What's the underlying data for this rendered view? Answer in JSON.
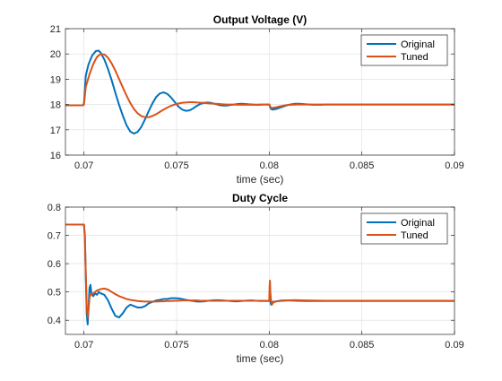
{
  "colors": {
    "original": "#0072BD",
    "tuned": "#D95319",
    "grid": "#dedede",
    "axis": "#262626",
    "legend_border": "#262626"
  },
  "chart_data": [
    {
      "type": "line",
      "title": "Output Voltage (V)",
      "xlabel": "time (sec)",
      "ylabel": "",
      "xlim": [
        0.069,
        0.09
      ],
      "ylim": [
        16,
        21
      ],
      "xticks": [
        0.07,
        0.075,
        0.08,
        0.085,
        0.09
      ],
      "xtick_labels": [
        "0.07",
        "0.075",
        "0.08",
        "0.085",
        "0.09"
      ],
      "yticks": [
        16,
        17,
        18,
        19,
        20,
        21
      ],
      "ytick_labels": [
        "16",
        "17",
        "18",
        "19",
        "20",
        "21"
      ],
      "grid": true,
      "legend": "top-right",
      "series": [
        {
          "name": "Original",
          "color": "#0072BD",
          "x": [
            0.069,
            0.06995,
            0.07,
            0.0701,
            0.07025,
            0.07045,
            0.07065,
            0.0708,
            0.0709,
            0.0711,
            0.0713,
            0.0715,
            0.0717,
            0.0719,
            0.0721,
            0.0723,
            0.0725,
            0.0727,
            0.0729,
            0.0731,
            0.0733,
            0.0735,
            0.0737,
            0.0739,
            0.0741,
            0.0743,
            0.0745,
            0.0747,
            0.0749,
            0.0751,
            0.0753,
            0.0755,
            0.0757,
            0.0759,
            0.0761,
            0.0763,
            0.0765,
            0.0767,
            0.0769,
            0.0771,
            0.0773,
            0.0775,
            0.0777,
            0.0779,
            0.0781,
            0.0783,
            0.0785,
            0.0787,
            0.0789,
            0.0791,
            0.0793,
            0.0795,
            0.0797,
            0.0799,
            0.08,
            0.08005,
            0.0801,
            0.0802,
            0.0804,
            0.0806,
            0.0808,
            0.081,
            0.0812,
            0.0814,
            0.0816,
            0.0818,
            0.082,
            0.0822,
            0.0824,
            0.0826,
            0.0828,
            0.083,
            0.0835,
            0.084,
            0.085,
            0.086,
            0.087,
            0.088,
            0.089,
            0.09
          ],
          "y": [
            17.97,
            17.97,
            18.05,
            19.15,
            19.6,
            19.95,
            20.12,
            20.13,
            20.05,
            19.78,
            19.4,
            18.95,
            18.45,
            17.98,
            17.55,
            17.18,
            16.93,
            16.85,
            16.92,
            17.12,
            17.42,
            17.75,
            18.05,
            18.3,
            18.44,
            18.48,
            18.42,
            18.28,
            18.1,
            17.92,
            17.8,
            17.75,
            17.77,
            17.85,
            17.95,
            18.03,
            18.07,
            18.08,
            18.06,
            18.02,
            17.98,
            17.96,
            17.96,
            17.98,
            18.0,
            18.02,
            18.03,
            18.02,
            18.01,
            18.0,
            17.99,
            17.99,
            18.0,
            18.0,
            18.0,
            17.9,
            17.82,
            17.8,
            17.83,
            17.88,
            17.93,
            17.98,
            18.01,
            18.03,
            18.03,
            18.02,
            18.01,
            18.0,
            17.99,
            17.99,
            17.99,
            18.0,
            18.0,
            18.0,
            18.0,
            18.0,
            18.0,
            18.0,
            18.0,
            18.0
          ]
        },
        {
          "name": "Tuned",
          "color": "#D95319",
          "x": [
            0.069,
            0.06995,
            0.07,
            0.0701,
            0.0703,
            0.0705,
            0.0707,
            0.0709,
            0.0711,
            0.0713,
            0.0715,
            0.0717,
            0.0719,
            0.0721,
            0.0723,
            0.0725,
            0.0727,
            0.0729,
            0.0731,
            0.0733,
            0.0735,
            0.0737,
            0.0739,
            0.0741,
            0.0743,
            0.0745,
            0.0747,
            0.0749,
            0.0751,
            0.0753,
            0.0755,
            0.0757,
            0.0759,
            0.0761,
            0.0763,
            0.0765,
            0.0767,
            0.0769,
            0.0771,
            0.0773,
            0.0775,
            0.0777,
            0.0779,
            0.0781,
            0.0783,
            0.0785,
            0.0787,
            0.0789,
            0.0791,
            0.0793,
            0.0795,
            0.0797,
            0.0799,
            0.08,
            0.08005,
            0.0801,
            0.0802,
            0.0804,
            0.0806,
            0.0808,
            0.081,
            0.0812,
            0.0815,
            0.082,
            0.083,
            0.084,
            0.085,
            0.086,
            0.087,
            0.088,
            0.089,
            0.09
          ],
          "y": [
            17.97,
            17.97,
            18.0,
            18.7,
            19.2,
            19.6,
            19.88,
            20.0,
            19.98,
            19.85,
            19.62,
            19.33,
            19.0,
            18.67,
            18.35,
            18.06,
            17.82,
            17.65,
            17.54,
            17.5,
            17.5,
            17.55,
            17.62,
            17.71,
            17.8,
            17.88,
            17.95,
            18.0,
            18.04,
            18.07,
            18.08,
            18.09,
            18.09,
            18.08,
            18.07,
            18.06,
            18.05,
            18.04,
            18.03,
            18.02,
            18.01,
            18.0,
            18.0,
            18.0,
            17.99,
            17.99,
            17.99,
            17.99,
            17.99,
            17.99,
            18.0,
            18.0,
            18.0,
            18.0,
            17.92,
            17.87,
            17.87,
            17.9,
            17.93,
            17.96,
            17.98,
            17.99,
            18.0,
            18.0,
            18.0,
            18.0,
            18.0,
            18.0,
            18.0,
            18.0,
            18.0,
            18.0
          ]
        }
      ]
    },
    {
      "type": "line",
      "title": "Duty Cycle",
      "xlabel": "time (sec)",
      "ylabel": "",
      "xlim": [
        0.069,
        0.09
      ],
      "ylim": [
        0.35,
        0.8
      ],
      "xticks": [
        0.07,
        0.075,
        0.08,
        0.085,
        0.09
      ],
      "xtick_labels": [
        "0.07",
        "0.075",
        "0.08",
        "0.085",
        "0.09"
      ],
      "yticks": [
        0.4,
        0.5,
        0.6,
        0.7,
        0.8
      ],
      "ytick_labels": [
        "0.4",
        "0.5",
        "0.6",
        "0.7",
        "0.8"
      ],
      "grid": true,
      "legend": "top-right",
      "series": [
        {
          "name": "Original",
          "color": "#0072BD",
          "x": [
            0.069,
            0.06995,
            0.07,
            0.07005,
            0.0701,
            0.07015,
            0.0702,
            0.07025,
            0.0703,
            0.07035,
            0.0704,
            0.0705,
            0.0706,
            0.0707,
            0.0708,
            0.0709,
            0.0711,
            0.0713,
            0.0715,
            0.0717,
            0.0719,
            0.0721,
            0.0723,
            0.0725,
            0.0727,
            0.0729,
            0.0731,
            0.0733,
            0.0735,
            0.0737,
            0.0739,
            0.0741,
            0.0743,
            0.0745,
            0.0747,
            0.0749,
            0.0751,
            0.0753,
            0.0755,
            0.0757,
            0.0759,
            0.0761,
            0.0763,
            0.0765,
            0.0767,
            0.0769,
            0.0771,
            0.0773,
            0.0775,
            0.0777,
            0.0779,
            0.0781,
            0.0783,
            0.0785,
            0.0787,
            0.0789,
            0.0791,
            0.0793,
            0.0795,
            0.0797,
            0.0799,
            0.08,
            0.08003,
            0.08006,
            0.0801,
            0.08015,
            0.0802,
            0.0803,
            0.0805,
            0.0807,
            0.081,
            0.0815,
            0.082,
            0.083,
            0.085,
            0.087,
            0.09
          ],
          "y": [
            0.738,
            0.738,
            0.738,
            0.7,
            0.55,
            0.42,
            0.385,
            0.45,
            0.515,
            0.525,
            0.495,
            0.485,
            0.495,
            0.49,
            0.5,
            0.495,
            0.49,
            0.47,
            0.44,
            0.415,
            0.41,
            0.425,
            0.445,
            0.455,
            0.45,
            0.445,
            0.445,
            0.45,
            0.46,
            0.465,
            0.47,
            0.472,
            0.475,
            0.475,
            0.478,
            0.478,
            0.477,
            0.475,
            0.472,
            0.47,
            0.468,
            0.466,
            0.466,
            0.467,
            0.469,
            0.47,
            0.471,
            0.471,
            0.47,
            0.469,
            0.468,
            0.467,
            0.467,
            0.468,
            0.469,
            0.47,
            0.47,
            0.469,
            0.468,
            0.468,
            0.468,
            0.468,
            0.485,
            0.465,
            0.455,
            0.46,
            0.465,
            0.466,
            0.468,
            0.47,
            0.47,
            0.469,
            0.468,
            0.468,
            0.468,
            0.468,
            0.468
          ]
        },
        {
          "name": "Tuned",
          "color": "#D95319",
          "x": [
            0.069,
            0.06995,
            0.07,
            0.07005,
            0.0701,
            0.07015,
            0.0702,
            0.07025,
            0.0703,
            0.07035,
            0.0704,
            0.0705,
            0.0707,
            0.0709,
            0.0711,
            0.0713,
            0.0715,
            0.0717,
            0.0719,
            0.0721,
            0.0723,
            0.0725,
            0.0727,
            0.0729,
            0.0731,
            0.0733,
            0.0735,
            0.0737,
            0.0739,
            0.0741,
            0.0743,
            0.0745,
            0.0747,
            0.0749,
            0.0751,
            0.0753,
            0.0755,
            0.0757,
            0.0759,
            0.0761,
            0.0763,
            0.0765,
            0.0767,
            0.0769,
            0.0771,
            0.0773,
            0.0775,
            0.0777,
            0.0779,
            0.0781,
            0.0783,
            0.0785,
            0.0787,
            0.0789,
            0.0791,
            0.0793,
            0.0795,
            0.0797,
            0.0799,
            0.08,
            0.08002,
            0.08004,
            0.08006,
            0.0801,
            0.08015,
            0.0802,
            0.0803,
            0.0804,
            0.0806,
            0.0808,
            0.081,
            0.0812,
            0.0815,
            0.082,
            0.083,
            0.085,
            0.087,
            0.09
          ],
          "y": [
            0.738,
            0.738,
            0.738,
            0.69,
            0.56,
            0.45,
            0.41,
            0.44,
            0.48,
            0.49,
            0.492,
            0.495,
            0.505,
            0.51,
            0.512,
            0.508,
            0.5,
            0.492,
            0.485,
            0.48,
            0.475,
            0.472,
            0.47,
            0.468,
            0.467,
            0.466,
            0.466,
            0.466,
            0.466,
            0.467,
            0.467,
            0.468,
            0.468,
            0.469,
            0.469,
            0.47,
            0.47,
            0.47,
            0.47,
            0.47,
            0.469,
            0.469,
            0.469,
            0.469,
            0.469,
            0.469,
            0.469,
            0.469,
            0.469,
            0.469,
            0.469,
            0.469,
            0.469,
            0.469,
            0.469,
            0.469,
            0.469,
            0.469,
            0.469,
            0.469,
            0.52,
            0.54,
            0.5,
            0.47,
            0.455,
            0.462,
            0.465,
            0.467,
            0.468,
            0.469,
            0.47,
            0.471,
            0.471,
            0.47,
            0.469,
            0.469,
            0.469,
            0.469
          ]
        }
      ]
    }
  ]
}
